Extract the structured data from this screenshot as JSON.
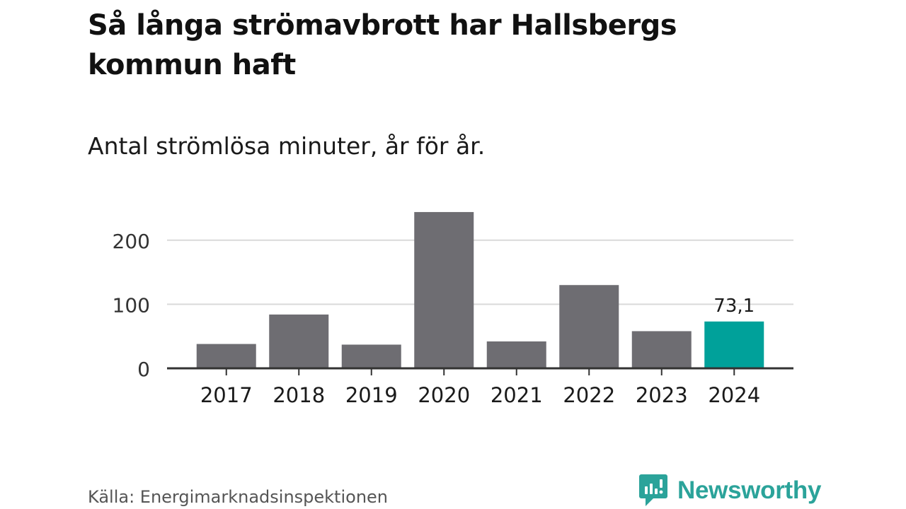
{
  "title": "Så långa strömavbrott har Hallsbergs kommun haft",
  "subtitle": "Antal strömlösa minuter, år för år.",
  "source": "Källa: Energimarknadsinspektionen",
  "brand": {
    "name": "Newsworthy",
    "icon": "newsworthy-logo-icon"
  },
  "colors": {
    "bar_default": "#6e6d72",
    "bar_highlight": "#00a19a",
    "grid": "#d9d9d9",
    "axis": "#333333",
    "brand": "#2ba39a"
  },
  "chart_data": {
    "type": "bar",
    "title": "Så långa strömavbrott har Hallsbergs kommun haft",
    "subtitle": "Antal strömlösa minuter, år för år.",
    "categories": [
      "2017",
      "2018",
      "2019",
      "2020",
      "2021",
      "2022",
      "2023",
      "2024"
    ],
    "values": [
      38,
      84,
      37,
      244,
      42,
      130,
      58,
      73.1
    ],
    "highlight_index": 7,
    "data_labels": [
      {
        "index": 7,
        "text": "73,1"
      }
    ],
    "xlabel": "",
    "ylabel": "",
    "ylim": [
      0,
      250
    ],
    "yticks": [
      0,
      100,
      200
    ],
    "ytick_labels": [
      "0",
      "100",
      "200"
    ],
    "grid": true
  }
}
